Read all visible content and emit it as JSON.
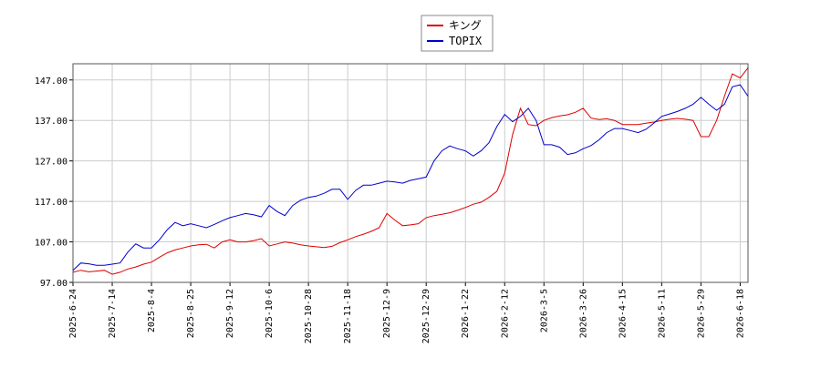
{
  "chart_data": {
    "type": "line",
    "categories": [
      "2025-6-24",
      null,
      null,
      null,
      null,
      "2025-7-14",
      null,
      null,
      null,
      null,
      "2025-8-4",
      null,
      null,
      null,
      null,
      "2025-8-25",
      null,
      null,
      null,
      null,
      "2025-9-12",
      null,
      null,
      null,
      null,
      "2025-10-6",
      null,
      null,
      null,
      null,
      "2025-10-28",
      null,
      null,
      null,
      null,
      "2025-11-18",
      null,
      null,
      null,
      null,
      "2025-12-9",
      null,
      null,
      null,
      null,
      "2025-12-29",
      null,
      null,
      null,
      null,
      "2026-1-22",
      null,
      null,
      null,
      null,
      "2026-2-12",
      null,
      null,
      null,
      null,
      "2026-3-5",
      null,
      null,
      null,
      null,
      "2026-3-26",
      null,
      null,
      null,
      null,
      "2026-4-15",
      null,
      null,
      null,
      null,
      "2026-5-11",
      null,
      null,
      null,
      null,
      "2026-5-29",
      null,
      null,
      null,
      null,
      "2026-6-18",
      null
    ],
    "series": [
      {
        "name": "キング",
        "color": "#dd0000",
        "values": [
          99.5,
          100,
          99.6,
          99.8,
          100,
          99,
          99.5,
          100.3,
          100.8,
          101.5,
          102,
          103.2,
          104.3,
          105,
          105.5,
          106,
          106.3,
          106.4,
          105.5,
          107,
          107.5,
          107,
          107,
          107.3,
          107.8,
          106,
          106.5,
          107,
          106.7,
          106.3,
          106,
          105.8,
          105.6,
          105.9,
          106.8,
          107.5,
          108.3,
          108.9,
          109.6,
          110.5,
          114,
          112.4,
          111,
          111.2,
          111.5,
          113,
          113.5,
          113.8,
          114.2,
          114.8,
          115.5,
          116.3,
          116.8,
          118,
          119.5,
          124,
          133.5,
          140,
          136,
          135.7,
          137,
          137.7,
          138.1,
          138.4,
          139,
          140,
          137.6,
          137.2,
          137.4,
          137,
          136,
          136,
          136,
          136.3,
          136.6,
          137,
          137.3,
          137.5,
          137.3,
          137,
          133,
          133,
          137,
          143,
          148.5,
          147.5,
          150
        ]
      },
      {
        "name": "TOPIX",
        "color": "#0000cc",
        "values": [
          100,
          101.8,
          101.6,
          101.2,
          101.2,
          101.5,
          101.8,
          104.5,
          106.5,
          105.5,
          105.5,
          107.5,
          110,
          111.8,
          111,
          111.5,
          111,
          110.5,
          111.3,
          112.2,
          113,
          113.5,
          114,
          113.7,
          113.2,
          116,
          114.5,
          113.5,
          116,
          117.3,
          118,
          118.3,
          119,
          120,
          120,
          117.5,
          119.7,
          121,
          121,
          121.5,
          122,
          121.8,
          121.5,
          122.2,
          122.6,
          123,
          127,
          129.5,
          130.7,
          130,
          129.5,
          128.2,
          129.5,
          131.5,
          135.5,
          138.5,
          136.7,
          138,
          140,
          137,
          131,
          131,
          130.4,
          128.6,
          129,
          130,
          130.8,
          132.2,
          134,
          135,
          135,
          134.5,
          134,
          134.8,
          136.3,
          138,
          138.6,
          139.2,
          140,
          141,
          142.7,
          141,
          139.5,
          141,
          145.3,
          145.8,
          143
        ]
      }
    ],
    "ylim": [
      97,
      151
    ],
    "yticks": [
      {
        "value": 97,
        "label": "97.00"
      },
      {
        "value": 107,
        "label": "107.00"
      },
      {
        "value": 117,
        "label": "117.00"
      },
      {
        "value": 127,
        "label": "127.00"
      },
      {
        "value": 137,
        "label": "137.00"
      },
      {
        "value": 147,
        "label": "147.00"
      }
    ],
    "grid": true,
    "legend": "top"
  }
}
